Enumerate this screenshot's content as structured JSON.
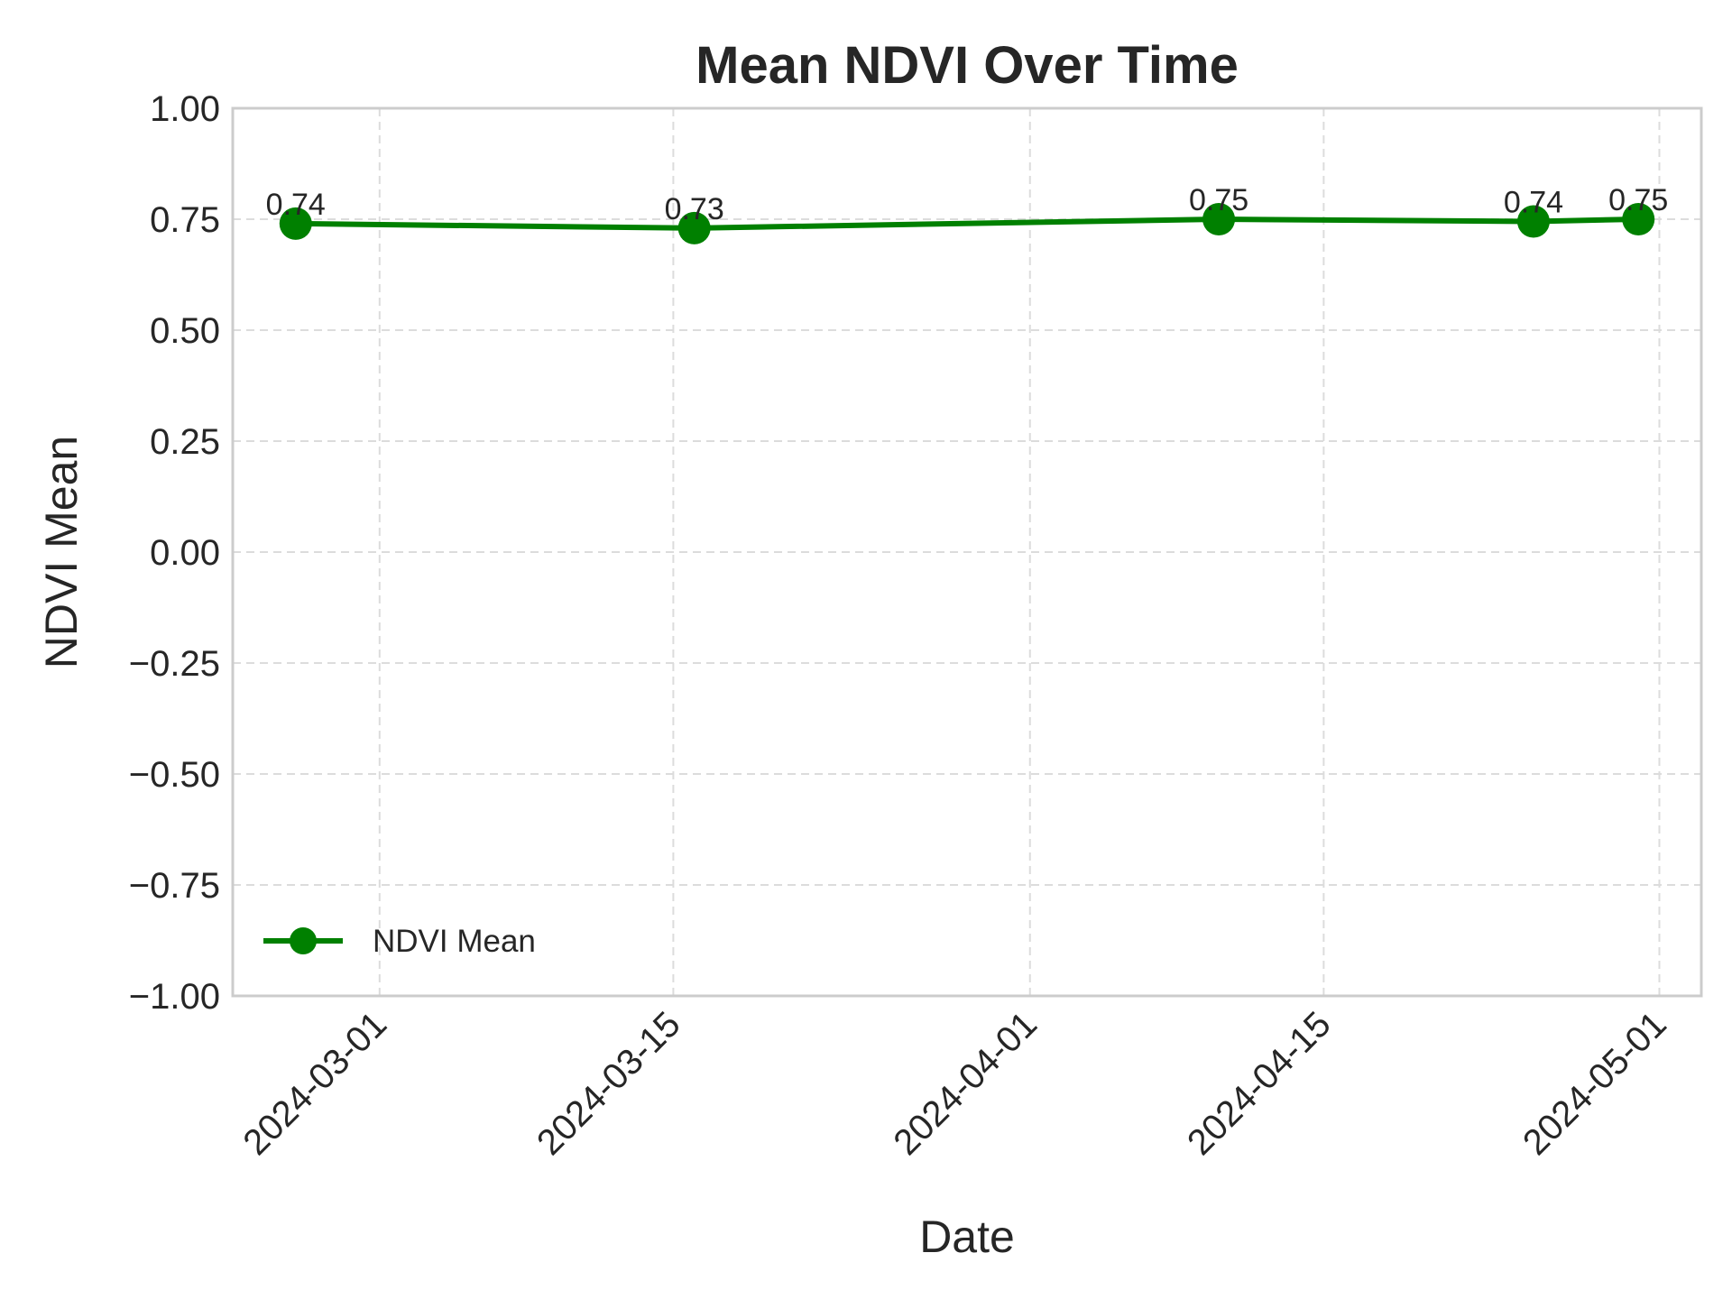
{
  "chart_data": {
    "type": "line",
    "title": "Mean NDVI Over Time",
    "xlabel": "Date",
    "ylabel": "NDVI Mean",
    "ylim": [
      -1.0,
      1.0
    ],
    "xlim": [
      "2024-02-23",
      "2024-05-03"
    ],
    "y_ticks": [
      "1.00",
      "0.75",
      "0.50",
      "0.25",
      "0.00",
      "−0.25",
      "−0.50",
      "−0.75",
      "−1.00"
    ],
    "y_tick_values": [
      1.0,
      0.75,
      0.5,
      0.25,
      0.0,
      -0.25,
      -0.5,
      -0.75,
      -1.0
    ],
    "x_ticks": [
      "2024-03-01",
      "2024-03-15",
      "2024-04-01",
      "2024-04-15",
      "2024-05-01"
    ],
    "grid": true,
    "legend_position": "lower-left",
    "series": [
      {
        "name": "NDVI Mean",
        "color": "#008000",
        "marker": "circle",
        "x": [
          "2024-02-26",
          "2024-03-16",
          "2024-04-10",
          "2024-04-25",
          "2024-04-30"
        ],
        "y": [
          0.74,
          0.73,
          0.75,
          0.745,
          0.75
        ],
        "labels": [
          "0.74",
          "0.73",
          "0.75",
          "0.74",
          "0.75"
        ]
      }
    ]
  }
}
